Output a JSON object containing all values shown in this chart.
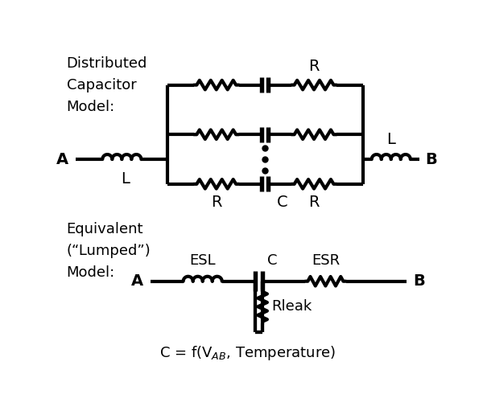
{
  "bg_color": "#ffffff",
  "line_color": "#000000",
  "line_width": 3.0,
  "fig_width": 6.0,
  "fig_height": 5.21,
  "text_label1": "Distributed",
  "text_label2": "Capacitor",
  "text_label3": "Model:",
  "text_label4": "Equivalent",
  "text_label5": "(“Lumped”)",
  "text_label6": "Model:",
  "text_A1": "A",
  "text_B1": "B",
  "text_A2": "A",
  "text_B2": "B",
  "text_L1": "L",
  "text_L2": "L",
  "text_R_top": "R",
  "text_R_bot_left": "R",
  "text_R_bot_right": "R",
  "text_C_bot": "C",
  "text_ESL": "ESL",
  "text_C2": "C",
  "text_ESR": "ESR",
  "text_Rleak": "Rleak"
}
